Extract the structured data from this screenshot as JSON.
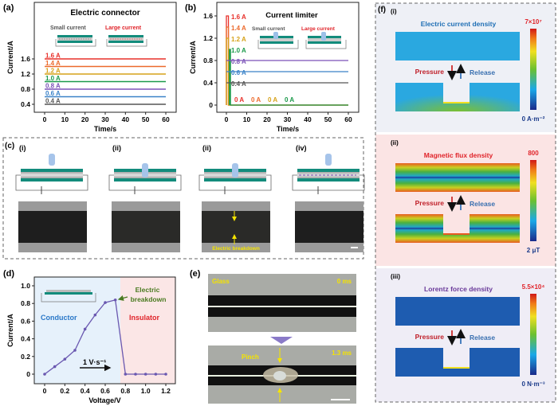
{
  "panels": {
    "a": {
      "label": "(a)",
      "title": "Electric connector",
      "small": "Small current",
      "large": "Large current"
    },
    "b": {
      "label": "(b)",
      "title": "Current limiter",
      "small": "Small current",
      "large": "Large current",
      "zero_labels": [
        "0 A",
        "0 A",
        "0 A",
        "0 A"
      ]
    },
    "c": {
      "label": "(c)",
      "sub": [
        "(i)",
        "(ii)",
        "(ii)",
        "(iv)"
      ],
      "breakdown": "Electric breakdown"
    },
    "d": {
      "label": "(d)",
      "conductor": "Conductor",
      "insulator": "Insulator",
      "breakdown1": "Electric",
      "breakdown2": "breakdown",
      "rate": "1 V·s⁻¹"
    },
    "e": {
      "label": "(e)",
      "glass": "Glass",
      "t0": "0 ms",
      "pinch": "Pinch",
      "t1": "1.3 ms"
    },
    "f": {
      "label": "(f)",
      "sub": [
        {
          "label": "(i)",
          "title": "Electric current density",
          "max": "7×10⁷",
          "min": "0 A·m⁻²",
          "title_color": "#1f6fb5"
        },
        {
          "label": "(ii)",
          "title": "Magnetic flux density",
          "max": "800",
          "min": "2 μT",
          "title_color": "#e0242a"
        },
        {
          "label": "(iii)",
          "title": "Lorentz force density",
          "max": "5.5×10⁴",
          "min": "0 N·m⁻³",
          "title_color": "#6a3a9a"
        }
      ],
      "pressure": "Pressure",
      "release": "Release"
    }
  },
  "chart_data": [
    {
      "id": "a",
      "type": "line",
      "title": "Electric connector",
      "xlabel": "Time/s",
      "ylabel": "Current/A",
      "xlim": [
        -5,
        65
      ],
      "ylim": [
        0.3,
        2.0
      ],
      "xticks": [
        0,
        10,
        20,
        30,
        40,
        50,
        60
      ],
      "yticks": [
        0.4,
        0.8,
        1.2,
        1.6
      ],
      "series": [
        {
          "name": "1.6 A",
          "value": 1.6,
          "x": [
            0,
            60
          ],
          "y": [
            1.6,
            1.6
          ],
          "color": "#e8302a"
        },
        {
          "name": "1.4 A",
          "value": 1.4,
          "x": [
            0,
            60
          ],
          "y": [
            1.4,
            1.4
          ],
          "color": "#ec6a2c"
        },
        {
          "name": "1.2 A",
          "value": 1.2,
          "x": [
            0,
            60
          ],
          "y": [
            1.2,
            1.2
          ],
          "color": "#d6a21a"
        },
        {
          "name": "1.0 A",
          "value": 1.0,
          "x": [
            0,
            60
          ],
          "y": [
            1.0,
            1.0
          ],
          "color": "#1a9a4a"
        },
        {
          "name": "0.8 A",
          "value": 0.8,
          "x": [
            0,
            60
          ],
          "y": [
            0.8,
            0.8
          ],
          "color": "#7b52b8"
        },
        {
          "name": "0.6 A",
          "value": 0.6,
          "x": [
            0,
            60
          ],
          "y": [
            0.6,
            0.6
          ],
          "color": "#3a82c8"
        },
        {
          "name": "0.4 A",
          "value": 0.4,
          "x": [
            0,
            60
          ],
          "y": [
            0.4,
            0.4
          ],
          "color": "#555555"
        }
      ]
    },
    {
      "id": "b",
      "type": "line",
      "title": "Current limiter",
      "xlabel": "Time/s",
      "ylabel": "Current/A",
      "xlim": [
        -5,
        65
      ],
      "ylim": [
        -0.08,
        1.7
      ],
      "xticks": [
        0,
        10,
        20,
        30,
        40,
        50,
        60
      ],
      "yticks": [
        0,
        0.4,
        0.8,
        1.2,
        1.6
      ],
      "series": [
        {
          "name": "1.6 A",
          "x": [
            0,
            0,
            1,
            1,
            60
          ],
          "y": [
            0,
            1.6,
            1.6,
            0,
            0
          ],
          "color": "#e8302a"
        },
        {
          "name": "1.4 A",
          "x": [
            0,
            0,
            1,
            1,
            60
          ],
          "y": [
            0,
            1.4,
            1.4,
            0,
            0
          ],
          "color": "#ec6a2c"
        },
        {
          "name": "1.2 A",
          "x": [
            0,
            0,
            1,
            1,
            60
          ],
          "y": [
            0,
            1.2,
            1.2,
            0,
            0
          ],
          "color": "#d6a21a"
        },
        {
          "name": "1.0 A",
          "x": [
            1.5,
            1.5,
            2,
            2,
            60
          ],
          "y": [
            0,
            1.0,
            1.0,
            0,
            0
          ],
          "color": "#1a9a4a"
        },
        {
          "name": "0.8 A",
          "x": [
            0,
            60
          ],
          "y": [
            0.8,
            0.8
          ],
          "color": "#7b52b8"
        },
        {
          "name": "0.6 A",
          "x": [
            0,
            60
          ],
          "y": [
            0.6,
            0.6
          ],
          "color": "#3a82c8"
        },
        {
          "name": "0.4 A",
          "x": [
            0,
            60
          ],
          "y": [
            0.4,
            0.4
          ],
          "color": "#555555"
        }
      ]
    },
    {
      "id": "d",
      "type": "line",
      "xlabel": "Voltage/V",
      "ylabel": "Current/A",
      "xlim": [
        -0.1,
        1.3
      ],
      "ylim": [
        -0.1,
        1.05
      ],
      "xticks": [
        0,
        0.2,
        0.4,
        0.6,
        0.8,
        1.0,
        1.2
      ],
      "yticks": [
        0,
        0.2,
        0.4,
        0.6,
        0.8,
        1.0
      ],
      "regions": [
        {
          "name": "Conductor",
          "from": -0.1,
          "to": 0.75,
          "color": "#e6f1fb"
        },
        {
          "name": "Insulator",
          "from": 0.75,
          "to": 1.3,
          "color": "#fbe6e6"
        }
      ],
      "series": [
        {
          "x": [
            0,
            0.1,
            0.2,
            0.3,
            0.4,
            0.5,
            0.6,
            0.7,
            0.8,
            0.9,
            1.0,
            1.1,
            1.2
          ],
          "y": [
            0,
            0.085,
            0.17,
            0.27,
            0.51,
            0.67,
            0.81,
            0.84,
            0,
            0,
            0,
            0,
            0
          ],
          "color": "#6a58b0"
        }
      ]
    }
  ]
}
